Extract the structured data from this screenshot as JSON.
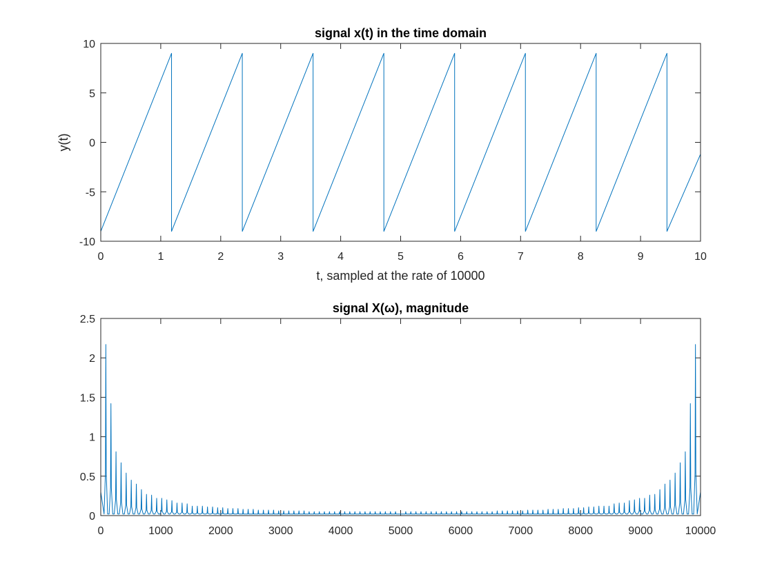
{
  "chart_data": [
    {
      "type": "line",
      "title": "signal x(t) in the time domain",
      "xlabel": "t, sampled at the rate of 10000",
      "ylabel": "y(t)",
      "xlim": [
        0,
        10
      ],
      "ylim": [
        -10,
        10
      ],
      "xticks": [
        "0",
        "1",
        "2",
        "3",
        "4",
        "5",
        "6",
        "7",
        "8",
        "9",
        "10"
      ],
      "yticks": [
        "-10",
        "-5",
        "0",
        "5",
        "10"
      ],
      "grid": false,
      "series": [
        {
          "style": "sawtooth",
          "color": "#0072bd",
          "period": 1.18,
          "min": -9,
          "max": 9,
          "x": [
            0,
            1.18,
            1.18,
            2.36,
            2.36,
            3.54,
            3.54,
            4.72,
            4.72,
            5.9,
            5.9,
            7.08,
            7.08,
            8.26,
            8.26,
            9.44,
            9.44,
            10
          ],
          "values": [
            -9,
            9,
            -9,
            9,
            -9,
            9,
            -9,
            9,
            -9,
            9,
            -9,
            9,
            -9,
            9,
            -9,
            9,
            -9,
            -1.2
          ]
        }
      ]
    },
    {
      "type": "line",
      "title": "signal X(ω), magnitude",
      "xlabel": "",
      "ylabel": "",
      "xlim": [
        0,
        10000
      ],
      "ylim": [
        0,
        2.5
      ],
      "xticks": [
        "0",
        "1000",
        "2000",
        "3000",
        "4000",
        "5000",
        "6000",
        "7000",
        "8000",
        "9000",
        "10000"
      ],
      "yticks": [
        "0",
        "0.5",
        "1",
        "1.5",
        "2",
        "2.5"
      ],
      "grid": false,
      "series": [
        {
          "style": "harmonic-spectrum",
          "color": "#0072bd",
          "peak_spacing": 84.7,
          "floor": 0.02,
          "peaks": [
            [
              84.7,
              2.17
            ],
            [
              169.5,
              1.42
            ],
            [
              254.2,
              0.81
            ],
            [
              338.9,
              0.67
            ],
            [
              423.7,
              0.54
            ],
            [
              508.4,
              0.45
            ],
            [
              593.2,
              0.4
            ],
            [
              677.9,
              0.33
            ],
            [
              762.6,
              0.27
            ],
            [
              847.4,
              0.26
            ],
            [
              932.1,
              0.22
            ],
            [
              1016.8,
              0.22
            ],
            [
              1101.6,
              0.2
            ],
            [
              1186.3,
              0.19
            ],
            [
              1271.1,
              0.16
            ],
            [
              1355.8,
              0.16
            ],
            [
              1440.5,
              0.15
            ],
            [
              1525.3,
              0.12
            ],
            [
              1610.0,
              0.12
            ],
            [
              1694.7,
              0.12
            ],
            [
              1779.5,
              0.11
            ],
            [
              1864.2,
              0.11
            ],
            [
              1949.0,
              0.1
            ],
            [
              2033.7,
              0.1
            ],
            [
              2118.4,
              0.09
            ],
            [
              2203.2,
              0.09
            ],
            [
              2287.9,
              0.09
            ],
            [
              2372.6,
              0.08
            ],
            [
              2457.4,
              0.08
            ],
            [
              2542.1,
              0.08
            ],
            [
              2626.9,
              0.07
            ],
            [
              2711.6,
              0.07
            ],
            [
              2796.3,
              0.07
            ],
            [
              2881.1,
              0.07
            ],
            [
              2965.8,
              0.06
            ],
            [
              3050.5,
              0.06
            ],
            [
              3135.3,
              0.06
            ],
            [
              3220.0,
              0.06
            ],
            [
              3304.8,
              0.06
            ],
            [
              3389.5,
              0.06
            ],
            [
              3474.2,
              0.05
            ],
            [
              3559.0,
              0.05
            ],
            [
              3643.7,
              0.05
            ],
            [
              3728.4,
              0.05
            ],
            [
              3813.2,
              0.05
            ],
            [
              3897.9,
              0.05
            ],
            [
              3982.7,
              0.05
            ],
            [
              4067.4,
              0.05
            ],
            [
              4152.1,
              0.05
            ],
            [
              4236.9,
              0.05
            ],
            [
              4321.6,
              0.05
            ],
            [
              4406.3,
              0.05
            ],
            [
              4491.1,
              0.05
            ],
            [
              4575.8,
              0.05
            ],
            [
              4660.6,
              0.05
            ],
            [
              4745.3,
              0.05
            ],
            [
              4830.0,
              0.05
            ],
            [
              4914.8,
              0.05
            ],
            [
              5085.2,
              0.05
            ],
            [
              5169.9,
              0.05
            ],
            [
              5254.7,
              0.05
            ],
            [
              5339.4,
              0.05
            ],
            [
              5424.2,
              0.05
            ],
            [
              5508.9,
              0.05
            ],
            [
              5593.6,
              0.05
            ],
            [
              5678.4,
              0.05
            ],
            [
              5763.1,
              0.05
            ],
            [
              5847.9,
              0.05
            ],
            [
              5932.6,
              0.05
            ],
            [
              6017.3,
              0.05
            ],
            [
              6102.1,
              0.05
            ],
            [
              6186.8,
              0.05
            ],
            [
              6271.6,
              0.05
            ],
            [
              6356.3,
              0.05
            ],
            [
              6441.0,
              0.05
            ],
            [
              6525.8,
              0.05
            ],
            [
              6610.5,
              0.06
            ],
            [
              6695.2,
              0.06
            ],
            [
              6780.0,
              0.06
            ],
            [
              6864.7,
              0.06
            ],
            [
              6949.5,
              0.06
            ],
            [
              7034.2,
              0.06
            ],
            [
              7118.9,
              0.07
            ],
            [
              7203.7,
              0.07
            ],
            [
              7288.4,
              0.07
            ],
            [
              7373.1,
              0.07
            ],
            [
              7457.9,
              0.08
            ],
            [
              7542.6,
              0.08
            ],
            [
              7627.4,
              0.08
            ],
            [
              7712.1,
              0.09
            ],
            [
              7796.8,
              0.09
            ],
            [
              7881.6,
              0.09
            ],
            [
              7966.3,
              0.1
            ],
            [
              8051.0,
              0.1
            ],
            [
              8135.8,
              0.11
            ],
            [
              8220.5,
              0.11
            ],
            [
              8305.3,
              0.12
            ],
            [
              8390.0,
              0.12
            ],
            [
              8474.7,
              0.12
            ],
            [
              8559.5,
              0.15
            ],
            [
              8644.2,
              0.16
            ],
            [
              8728.9,
              0.16
            ],
            [
              8813.7,
              0.19
            ],
            [
              8898.4,
              0.2
            ],
            [
              8983.2,
              0.22
            ],
            [
              9067.9,
              0.22
            ],
            [
              9152.6,
              0.26
            ],
            [
              9237.4,
              0.27
            ],
            [
              9322.1,
              0.33
            ],
            [
              9406.8,
              0.4
            ],
            [
              9491.6,
              0.45
            ],
            [
              9576.3,
              0.54
            ],
            [
              9661.1,
              0.67
            ],
            [
              9745.8,
              0.81
            ],
            [
              9830.5,
              1.42
            ],
            [
              9915.3,
              2.17
            ]
          ],
          "endpoints": [
            [
              0,
              0.3
            ],
            [
              10000,
              0.3
            ]
          ]
        }
      ]
    }
  ]
}
